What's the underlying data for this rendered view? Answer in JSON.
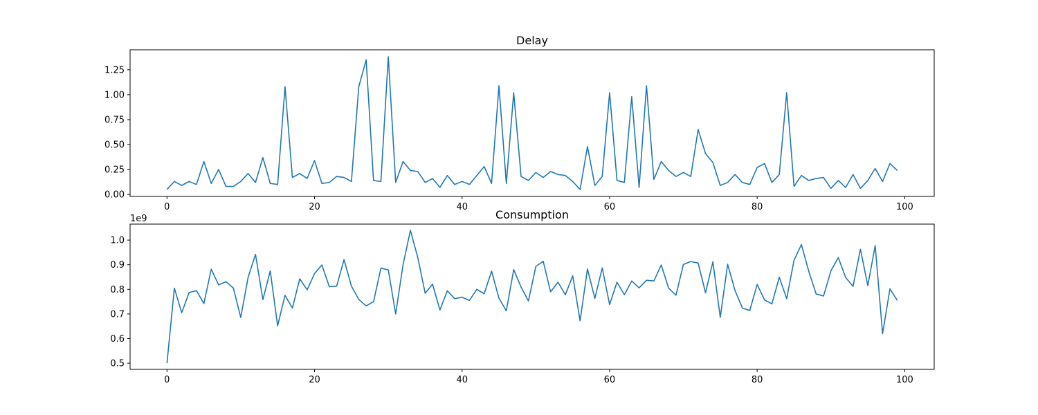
{
  "chart_data": [
    {
      "type": "line",
      "title": "Delay",
      "xlabel": "",
      "ylabel": "",
      "xlim": [
        -5,
        104
      ],
      "ylim": [
        -0.02,
        1.45
      ],
      "x_ticks": [
        0,
        20,
        40,
        60,
        80,
        100
      ],
      "y_ticks": [
        0.0,
        0.25,
        0.5,
        0.75,
        1.0,
        1.25
      ],
      "x_tick_labels": [
        "0",
        "20",
        "40",
        "60",
        "80",
        "100"
      ],
      "y_tick_labels": [
        "0.00",
        "0.25",
        "0.50",
        "0.75",
        "1.00",
        "1.25"
      ],
      "grid": false,
      "color": "#1f77b4",
      "series": [
        {
          "x_start": 0,
          "values": [
            0.05,
            0.13,
            0.09,
            0.13,
            0.1,
            0.33,
            0.11,
            0.25,
            0.08,
            0.08,
            0.13,
            0.21,
            0.12,
            0.37,
            0.11,
            0.1,
            1.08,
            0.17,
            0.21,
            0.16,
            0.34,
            0.11,
            0.12,
            0.18,
            0.17,
            0.13,
            1.08,
            1.35,
            0.14,
            0.13,
            1.38,
            0.12,
            0.33,
            0.24,
            0.23,
            0.12,
            0.16,
            0.07,
            0.19,
            0.1,
            0.13,
            0.1,
            0.19,
            0.28,
            0.11,
            1.09,
            0.11,
            1.02,
            0.18,
            0.14,
            0.22,
            0.17,
            0.23,
            0.2,
            0.19,
            0.13,
            0.05,
            0.48,
            0.09,
            0.18,
            1.02,
            0.14,
            0.12,
            0.98,
            0.07,
            1.09,
            0.15,
            0.33,
            0.24,
            0.18,
            0.22,
            0.18,
            0.65,
            0.41,
            0.32,
            0.09,
            0.12,
            0.2,
            0.12,
            0.1,
            0.27,
            0.31,
            0.12,
            0.2,
            1.02,
            0.08,
            0.19,
            0.14,
            0.16,
            0.17,
            0.06,
            0.14,
            0.07,
            0.2,
            0.06,
            0.14,
            0.26,
            0.13,
            0.31,
            0.24
          ]
        }
      ]
    },
    {
      "type": "line",
      "title": "Consumption",
      "xlabel": "",
      "ylabel": "",
      "y_offset_label": "1e9",
      "xlim": [
        -5,
        104
      ],
      "ylim": [
        0.475,
        1.065
      ],
      "x_ticks": [
        0,
        20,
        40,
        60,
        80,
        100
      ],
      "y_ticks": [
        0.5,
        0.6,
        0.7,
        0.8,
        0.9,
        1.0
      ],
      "x_tick_labels": [
        "0",
        "20",
        "40",
        "60",
        "80",
        "100"
      ],
      "y_tick_labels": [
        "0.5",
        "0.6",
        "0.7",
        "0.8",
        "0.9",
        "1.0"
      ],
      "grid": false,
      "color": "#1f77b4",
      "series": [
        {
          "x_start": 0,
          "values": [
            0.5,
            0.805,
            0.705,
            0.787,
            0.795,
            0.742,
            0.882,
            0.818,
            0.831,
            0.805,
            0.686,
            0.849,
            0.942,
            0.758,
            0.875,
            0.652,
            0.776,
            0.724,
            0.843,
            0.798,
            0.864,
            0.899,
            0.811,
            0.813,
            0.921,
            0.813,
            0.759,
            0.733,
            0.75,
            0.886,
            0.879,
            0.7,
            0.9,
            1.04,
            0.929,
            0.784,
            0.821,
            0.716,
            0.794,
            0.762,
            0.768,
            0.755,
            0.8,
            0.782,
            0.874,
            0.764,
            0.713,
            0.88,
            0.809,
            0.753,
            0.893,
            0.914,
            0.79,
            0.829,
            0.778,
            0.855,
            0.672,
            0.883,
            0.763,
            0.887,
            0.738,
            0.829,
            0.778,
            0.834,
            0.806,
            0.837,
            0.834,
            0.899,
            0.805,
            0.776,
            0.901,
            0.913,
            0.907,
            0.786,
            0.912,
            0.686,
            0.902,
            0.795,
            0.724,
            0.714,
            0.82,
            0.757,
            0.741,
            0.849,
            0.762,
            0.918,
            0.982,
            0.873,
            0.781,
            0.773,
            0.875,
            0.929,
            0.848,
            0.812,
            0.963,
            0.815,
            0.978,
            0.62,
            0.802,
            0.755
          ]
        }
      ]
    }
  ]
}
